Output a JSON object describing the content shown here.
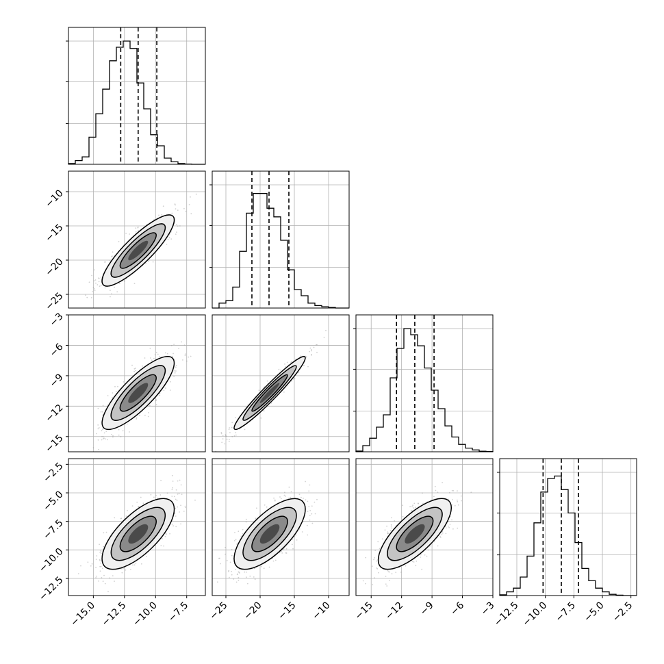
{
  "chart_data": {
    "type": "corner",
    "params": [
      {
        "range": [
          -17.0,
          -6.0
        ],
        "ticks": [
          -15.0,
          -12.5,
          -10.0,
          -7.5
        ],
        "tick_labels": [
          "−15.0",
          "−12.5",
          "−10.0",
          "−7.5"
        ],
        "quantiles": [
          -12.8,
          -11.4,
          -9.9
        ],
        "mean": -11.4,
        "sd": 1.45
      },
      {
        "range": [
          -27.0,
          -7.0
        ],
        "ticks": [
          -25,
          -20,
          -15,
          -10
        ],
        "tick_labels": [
          "−25",
          "−20",
          "−15",
          "−10"
        ],
        "quantiles": [
          -21.2,
          -18.7,
          -15.8
        ],
        "mean": -18.6,
        "sd": 2.6
      },
      {
        "range": [
          -16.5,
          -3.0
        ],
        "ticks": [
          -15,
          -12,
          -9,
          -6,
          -3
        ],
        "tick_labels": [
          "−15",
          "−12",
          "−9",
          "−6",
          "−3"
        ],
        "quantiles": [
          -12.5,
          -10.7,
          -8.8
        ],
        "mean": -10.7,
        "sd": 1.8
      },
      {
        "range": [
          -14.0,
          -2.0
        ],
        "ticks": [
          -12.5,
          -10.0,
          -7.5,
          -5.0,
          -2.5
        ],
        "tick_labels": [
          "−12.5",
          "−10.0",
          "−7.5",
          "−5.0",
          "−2.5"
        ],
        "quantiles": [
          -10.2,
          -8.6,
          -7.1
        ],
        "mean": -8.6,
        "sd": 1.55
      }
    ],
    "histograms": [
      {
        "param": 0,
        "max_count": 1,
        "y_ticks": [
          0.33,
          0.67,
          1.0
        ],
        "counts": [
          0.006,
          0.03,
          0.06,
          0.22,
          0.41,
          0.61,
          0.84,
          0.95,
          1.0,
          0.94,
          0.66,
          0.45,
          0.24,
          0.15,
          0.05,
          0.02,
          0.006,
          0.002,
          0.0,
          0.0
        ]
      },
      {
        "param": 1,
        "max_count": 1,
        "y_ticks": [
          0.33,
          0.67,
          1.0
        ],
        "counts": [
          0.0,
          0.04,
          0.06,
          0.17,
          0.46,
          0.77,
          0.93,
          0.93,
          0.81,
          0.74,
          0.55,
          0.31,
          0.15,
          0.1,
          0.04,
          0.02,
          0.01,
          0.005,
          0.0,
          0.0
        ]
      },
      {
        "param": 2,
        "max_count": 1,
        "y_ticks": [
          0.33,
          0.67,
          1.0
        ],
        "counts": [
          0.006,
          0.05,
          0.11,
          0.2,
          0.3,
          0.6,
          0.84,
          1.0,
          0.95,
          0.86,
          0.68,
          0.5,
          0.35,
          0.21,
          0.12,
          0.06,
          0.03,
          0.015,
          0.005,
          0.002
        ]
      },
      {
        "param": 3,
        "max_count": 1,
        "y_ticks": [
          0.33,
          0.67,
          1.0
        ],
        "counts": [
          0.006,
          0.03,
          0.06,
          0.15,
          0.32,
          0.59,
          0.84,
          0.95,
          0.97,
          0.86,
          0.67,
          0.43,
          0.22,
          0.12,
          0.06,
          0.03,
          0.01,
          0.003,
          0.0,
          0.0
        ]
      }
    ],
    "pairs": [
      {
        "x_param": 0,
        "y_param": 1,
        "correlation": 0.86
      },
      {
        "x_param": 0,
        "y_param": 2,
        "correlation": 0.82
      },
      {
        "x_param": 1,
        "y_param": 2,
        "correlation": 0.96
      },
      {
        "x_param": 0,
        "y_param": 3,
        "correlation": 0.7
      },
      {
        "x_param": 1,
        "y_param": 3,
        "correlation": 0.7
      },
      {
        "x_param": 2,
        "y_param": 3,
        "correlation": 0.74
      }
    ],
    "grid": true,
    "colors": {
      "scatter": "#999999",
      "contour": "#000000",
      "quantile_line": "#000000",
      "grid": "#b0b0b0"
    }
  }
}
